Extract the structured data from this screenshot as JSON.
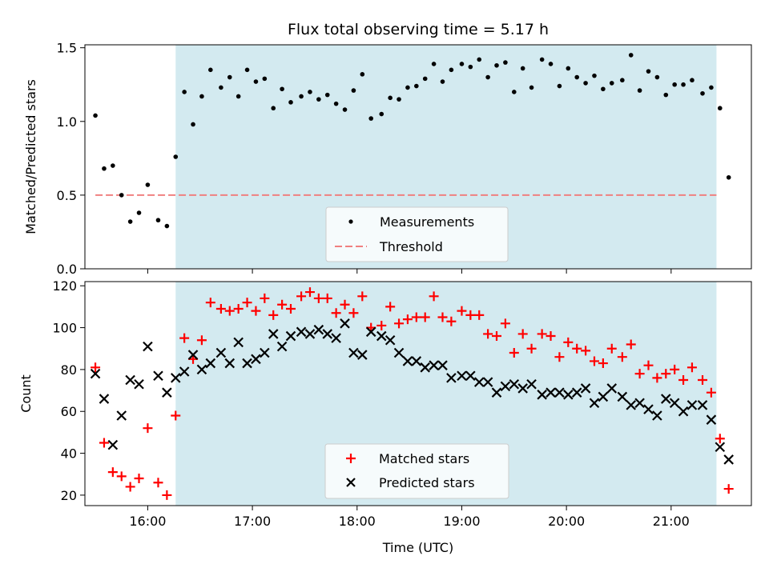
{
  "chart_data": [
    {
      "type": "scatter",
      "title": "Flux total observing time = 5.17 h",
      "xlabel": "",
      "ylabel": "Matched/Predicted stars",
      "ylim": [
        0,
        1.52
      ],
      "yticks": [
        0.0,
        0.5,
        1.0,
        1.5
      ],
      "ytick_labels": [
        "0.0",
        "0.5",
        "1.0",
        "1.5"
      ],
      "xlim": [
        "15:24",
        "21:46"
      ],
      "xticks": [
        "16:00",
        "17:00",
        "18:00",
        "19:00",
        "20:00",
        "21:00"
      ],
      "shaded_span": {
        "start": "16:16",
        "end": "21:26",
        "color": "#d3eaf0"
      },
      "threshold": {
        "name": "Threshold",
        "value": 0.5,
        "start": "15:30",
        "end": "21:26",
        "color": "#f08080"
      },
      "legend": {
        "location": "lower center",
        "entries": [
          "Measurements",
          "Threshold"
        ]
      },
      "series": [
        {
          "name": "Measurements",
          "marker": "dot",
          "color": "#000000",
          "points": [
            [
              "15:30",
              1.04
            ],
            [
              "15:35",
              0.68
            ],
            [
              "15:40",
              0.7
            ],
            [
              "15:45",
              0.5
            ],
            [
              "15:50",
              0.32
            ],
            [
              "15:55",
              0.38
            ],
            [
              "16:00",
              0.57
            ],
            [
              "16:06",
              0.33
            ],
            [
              "16:11",
              0.29
            ],
            [
              "16:16",
              0.76
            ],
            [
              "16:21",
              1.2
            ],
            [
              "16:26",
              0.98
            ],
            [
              "16:31",
              1.17
            ],
            [
              "16:36",
              1.35
            ],
            [
              "16:42",
              1.23
            ],
            [
              "16:47",
              1.3
            ],
            [
              "16:52",
              1.17
            ],
            [
              "16:57",
              1.35
            ],
            [
              "17:02",
              1.27
            ],
            [
              "17:07",
              1.29
            ],
            [
              "17:12",
              1.09
            ],
            [
              "17:17",
              1.22
            ],
            [
              "17:22",
              1.13
            ],
            [
              "17:28",
              1.17
            ],
            [
              "17:33",
              1.2
            ],
            [
              "17:38",
              1.15
            ],
            [
              "17:43",
              1.18
            ],
            [
              "17:48",
              1.12
            ],
            [
              "17:53",
              1.08
            ],
            [
              "17:58",
              1.21
            ],
            [
              "18:03",
              1.32
            ],
            [
              "18:08",
              1.02
            ],
            [
              "18:14",
              1.05
            ],
            [
              "18:19",
              1.16
            ],
            [
              "18:24",
              1.15
            ],
            [
              "18:29",
              1.23
            ],
            [
              "18:34",
              1.24
            ],
            [
              "18:39",
              1.29
            ],
            [
              "18:44",
              1.39
            ],
            [
              "18:49",
              1.27
            ],
            [
              "18:54",
              1.35
            ],
            [
              "19:00",
              1.39
            ],
            [
              "19:05",
              1.37
            ],
            [
              "19:10",
              1.42
            ],
            [
              "19:15",
              1.3
            ],
            [
              "19:20",
              1.38
            ],
            [
              "19:25",
              1.4
            ],
            [
              "19:30",
              1.2
            ],
            [
              "19:35",
              1.36
            ],
            [
              "19:40",
              1.23
            ],
            [
              "19:46",
              1.42
            ],
            [
              "19:51",
              1.39
            ],
            [
              "19:56",
              1.24
            ],
            [
              "20:01",
              1.36
            ],
            [
              "20:06",
              1.3
            ],
            [
              "20:11",
              1.26
            ],
            [
              "20:16",
              1.31
            ],
            [
              "20:21",
              1.22
            ],
            [
              "20:26",
              1.26
            ],
            [
              "20:32",
              1.28
            ],
            [
              "20:37",
              1.45
            ],
            [
              "20:42",
              1.21
            ],
            [
              "20:47",
              1.34
            ],
            [
              "20:52",
              1.3
            ],
            [
              "20:57",
              1.18
            ],
            [
              "21:02",
              1.25
            ],
            [
              "21:07",
              1.25
            ],
            [
              "21:12",
              1.28
            ],
            [
              "21:18",
              1.19
            ],
            [
              "21:23",
              1.23
            ],
            [
              "21:28",
              1.09
            ],
            [
              "21:33",
              0.62
            ]
          ]
        }
      ]
    },
    {
      "type": "scatter",
      "title": "",
      "xlabel": "Time (UTC)",
      "ylabel": "Count",
      "ylim": [
        15,
        122
      ],
      "yticks": [
        20,
        40,
        60,
        80,
        100,
        120
      ],
      "ytick_labels": [
        "20",
        "40",
        "60",
        "80",
        "100",
        "120"
      ],
      "xlim": [
        "15:24",
        "21:46"
      ],
      "xticks": [
        "16:00",
        "17:00",
        "18:00",
        "19:00",
        "20:00",
        "21:00"
      ],
      "xtick_labels": [
        "16:00",
        "17:00",
        "18:00",
        "19:00",
        "20:00",
        "21:00"
      ],
      "shaded_span": {
        "start": "16:16",
        "end": "21:26",
        "color": "#d3eaf0"
      },
      "legend": {
        "location": "lower center",
        "entries": [
          "Matched stars",
          "Predicted stars"
        ]
      },
      "series": [
        {
          "name": "Matched stars",
          "marker": "plus",
          "color": "#ff0000",
          "points": [
            [
              "15:30",
              81
            ],
            [
              "15:35",
              45
            ],
            [
              "15:40",
              31
            ],
            [
              "15:45",
              29
            ],
            [
              "15:50",
              24
            ],
            [
              "15:55",
              28
            ],
            [
              "16:00",
              52
            ],
            [
              "16:06",
              26
            ],
            [
              "16:11",
              20
            ],
            [
              "16:16",
              58
            ],
            [
              "16:21",
              95
            ],
            [
              "16:26",
              85
            ],
            [
              "16:31",
              94
            ],
            [
              "16:36",
              112
            ],
            [
              "16:42",
              109
            ],
            [
              "16:47",
              108
            ],
            [
              "16:52",
              109
            ],
            [
              "16:57",
              112
            ],
            [
              "17:02",
              108
            ],
            [
              "17:07",
              114
            ],
            [
              "17:12",
              106
            ],
            [
              "17:17",
              111
            ],
            [
              "17:22",
              109
            ],
            [
              "17:28",
              115
            ],
            [
              "17:33",
              117
            ],
            [
              "17:38",
              114
            ],
            [
              "17:43",
              114
            ],
            [
              "17:48",
              107
            ],
            [
              "17:53",
              111
            ],
            [
              "17:58",
              107
            ],
            [
              "18:03",
              115
            ],
            [
              "18:08",
              100
            ],
            [
              "18:14",
              101
            ],
            [
              "18:19",
              110
            ],
            [
              "18:24",
              102
            ],
            [
              "18:29",
              104
            ],
            [
              "18:34",
              105
            ],
            [
              "18:39",
              105
            ],
            [
              "18:44",
              115
            ],
            [
              "18:49",
              105
            ],
            [
              "18:54",
              103
            ],
            [
              "19:00",
              108
            ],
            [
              "19:05",
              106
            ],
            [
              "19:10",
              106
            ],
            [
              "19:15",
              97
            ],
            [
              "19:20",
              96
            ],
            [
              "19:25",
              102
            ],
            [
              "19:30",
              88
            ],
            [
              "19:35",
              97
            ],
            [
              "19:40",
              90
            ],
            [
              "19:46",
              97
            ],
            [
              "19:51",
              96
            ],
            [
              "19:56",
              86
            ],
            [
              "20:01",
              93
            ],
            [
              "20:06",
              90
            ],
            [
              "20:11",
              89
            ],
            [
              "20:16",
              84
            ],
            [
              "20:21",
              83
            ],
            [
              "20:26",
              90
            ],
            [
              "20:32",
              86
            ],
            [
              "20:37",
              92
            ],
            [
              "20:42",
              78
            ],
            [
              "20:47",
              82
            ],
            [
              "20:52",
              76
            ],
            [
              "20:57",
              78
            ],
            [
              "21:02",
              80
            ],
            [
              "21:07",
              75
            ],
            [
              "21:12",
              81
            ],
            [
              "21:18",
              75
            ],
            [
              "21:23",
              69
            ],
            [
              "21:28",
              47
            ],
            [
              "21:33",
              23
            ]
          ]
        },
        {
          "name": "Predicted stars",
          "marker": "x",
          "color": "#000000",
          "points": [
            [
              "15:30",
              78
            ],
            [
              "15:35",
              66
            ],
            [
              "15:40",
              44
            ],
            [
              "15:45",
              58
            ],
            [
              "15:50",
              75
            ],
            [
              "15:55",
              73
            ],
            [
              "16:00",
              91
            ],
            [
              "16:06",
              77
            ],
            [
              "16:11",
              69
            ],
            [
              "16:16",
              76
            ],
            [
              "16:21",
              79
            ],
            [
              "16:26",
              87
            ],
            [
              "16:31",
              80
            ],
            [
              "16:36",
              83
            ],
            [
              "16:42",
              88
            ],
            [
              "16:47",
              83
            ],
            [
              "16:52",
              93
            ],
            [
              "16:57",
              83
            ],
            [
              "17:02",
              85
            ],
            [
              "17:07",
              88
            ],
            [
              "17:12",
              97
            ],
            [
              "17:17",
              91
            ],
            [
              "17:22",
              96
            ],
            [
              "17:28",
              98
            ],
            [
              "17:33",
              97
            ],
            [
              "17:38",
              99
            ],
            [
              "17:43",
              97
            ],
            [
              "17:48",
              95
            ],
            [
              "17:53",
              102
            ],
            [
              "17:58",
              88
            ],
            [
              "18:03",
              87
            ],
            [
              "18:08",
              98
            ],
            [
              "18:14",
              96
            ],
            [
              "18:19",
              94
            ],
            [
              "18:24",
              88
            ],
            [
              "18:29",
              84
            ],
            [
              "18:34",
              84
            ],
            [
              "18:39",
              81
            ],
            [
              "18:44",
              82
            ],
            [
              "18:49",
              82
            ],
            [
              "18:54",
              76
            ],
            [
              "19:00",
              77
            ],
            [
              "19:05",
              77
            ],
            [
              "19:10",
              74
            ],
            [
              "19:15",
              74
            ],
            [
              "19:20",
              69
            ],
            [
              "19:25",
              72
            ],
            [
              "19:30",
              73
            ],
            [
              "19:35",
              71
            ],
            [
              "19:40",
              73
            ],
            [
              "19:46",
              68
            ],
            [
              "19:51",
              69
            ],
            [
              "19:56",
              69
            ],
            [
              "20:01",
              68
            ],
            [
              "20:06",
              69
            ],
            [
              "20:11",
              71
            ],
            [
              "20:16",
              64
            ],
            [
              "20:21",
              67
            ],
            [
              "20:26",
              71
            ],
            [
              "20:32",
              67
            ],
            [
              "20:37",
              63
            ],
            [
              "20:42",
              64
            ],
            [
              "20:47",
              61
            ],
            [
              "20:52",
              58
            ],
            [
              "20:57",
              66
            ],
            [
              "21:02",
              64
            ],
            [
              "21:07",
              60
            ],
            [
              "21:12",
              63
            ],
            [
              "21:18",
              63
            ],
            [
              "21:23",
              56
            ],
            [
              "21:28",
              43
            ],
            [
              "21:33",
              37
            ]
          ]
        }
      ]
    }
  ]
}
